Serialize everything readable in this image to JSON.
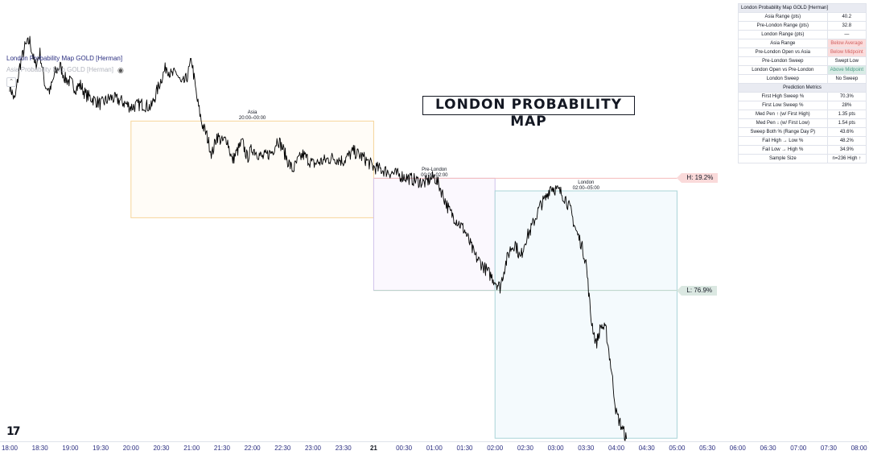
{
  "legend": {
    "indicator_title": "London Probability Map GOLD [Herman]",
    "indicator_sub": "Asia Probability Map GOLD [Herman]",
    "eye_icon": "eye-icon",
    "collapse_icon": "chevron-up-icon"
  },
  "banner_title": "LONDON PROBABILITY MAP",
  "sessions": [
    {
      "name": "Asia",
      "time": "20:00–00:00",
      "start": "20:00",
      "end": "00:00",
      "top": 100.6,
      "bottom": 70.0,
      "fill": "#fffcf7",
      "stroke": "#f6d59a"
    },
    {
      "name": "Pre-London",
      "time": "00:00–02:00",
      "start": "00:00",
      "end": "02:00",
      "top": 82.5,
      "bottom": 47.0,
      "fill": "#fbf8fe",
      "stroke": "#cfc2ea"
    },
    {
      "name": "London",
      "time": "02:00–05:00",
      "start": "02:00",
      "end": "05:00",
      "top": 78.5,
      "bottom": 0.2,
      "fill": "#f4fafd",
      "stroke": "#aad4d8"
    }
  ],
  "levels": [
    {
      "label": "H: 19.2%",
      "value": 82.5,
      "from": "00:00",
      "to": "05:00",
      "color": "#f5bcbc",
      "kind": "h"
    },
    {
      "label": "L: 76.9%",
      "value": 47.0,
      "from": "00:00",
      "to": "05:00",
      "color": "#b9d3c7",
      "kind": "l"
    }
  ],
  "info_table": {
    "title": "London Probability Map GOLD [Herman]",
    "rows": [
      {
        "label": "Asia Range (pts)",
        "value": "40.2",
        "style": ""
      },
      {
        "label": "Pre-London Range (pts)",
        "value": "32.8",
        "style": ""
      },
      {
        "label": "London Range (pts)",
        "value": "—",
        "style": ""
      },
      {
        "label": "Asia Range",
        "value": "Below Average",
        "style": "red"
      },
      {
        "label": "Pre-London Open vs Asia",
        "value": "Below Midpoint",
        "style": "red"
      },
      {
        "label": "Pre-London Sweep",
        "value": "Swept Low",
        "style": ""
      },
      {
        "label": "London Open vs Pre-London",
        "value": "Above Midpoint",
        "style": "green"
      },
      {
        "label": "London Sweep",
        "value": "No Sweep",
        "style": ""
      }
    ],
    "section_title": "Prediction Metrics",
    "metrics": [
      {
        "label": "First High Sweep %",
        "value": "70.3%"
      },
      {
        "label": "First Low Sweep %",
        "value": "28%"
      },
      {
        "label": "Med Pen ↑ (w/ First High)",
        "value": "1.35 pts"
      },
      {
        "label": "Med Pen ↓ (w/ First Low)",
        "value": "1.54 pts"
      },
      {
        "label": "Sweep Both % (Range Day P)",
        "value": "43.6%"
      },
      {
        "label": "Fail High → Low %",
        "value": "48.2%"
      },
      {
        "label": "Fail Low → High %",
        "value": "34.9%"
      },
      {
        "label": "Sample Size",
        "value": "n=236 High ↑"
      }
    ]
  },
  "chart_data": {
    "type": "line",
    "x_ticks": [
      "18:00",
      "18:30",
      "19:00",
      "19:30",
      "20:00",
      "20:30",
      "21:00",
      "21:30",
      "22:00",
      "22:30",
      "23:00",
      "23:30",
      "21",
      "00:30",
      "01:00",
      "01:30",
      "02:00",
      "02:30",
      "03:00",
      "03:30",
      "04:00",
      "04:30",
      "05:00",
      "05:30",
      "06:00",
      "06:30",
      "07:00",
      "07:30",
      "08:00"
    ],
    "x_range": [
      "18:00",
      "08:00"
    ],
    "y_range": [
      0,
      130
    ],
    "series": [
      {
        "values_time": [
          "18:00",
          "18:05",
          "18:10",
          "18:15",
          "18:20",
          "18:25",
          "18:30",
          "18:35",
          "18:40",
          "18:45",
          "18:50",
          "18:55",
          "19:00",
          "19:05",
          "19:10",
          "19:15",
          "19:20",
          "19:25",
          "19:30",
          "19:40",
          "19:50",
          "20:00",
          "20:10",
          "20:20",
          "20:30",
          "20:35",
          "20:40",
          "20:45",
          "20:50",
          "20:55",
          "21:00",
          "21:05",
          "21:10",
          "21:15",
          "21:20",
          "21:25",
          "21:30",
          "21:35",
          "21:40",
          "21:45",
          "21:50",
          "21:55",
          "22:00",
          "22:10",
          "22:20",
          "22:25",
          "22:30",
          "22:35",
          "22:40",
          "22:45",
          "22:50",
          "23:00",
          "23:10",
          "23:20",
          "23:30",
          "23:40",
          "23:50",
          "00:00",
          "00:10",
          "00:20",
          "00:30",
          "00:40",
          "00:50",
          "01:00",
          "01:05",
          "01:10",
          "01:15",
          "01:20",
          "01:25",
          "01:30",
          "01:35",
          "01:40",
          "01:45",
          "01:50",
          "01:55",
          "02:00",
          "02:05",
          "02:10",
          "02:15",
          "02:20",
          "02:25",
          "02:30",
          "02:35",
          "02:40",
          "02:45",
          "02:50",
          "02:55",
          "03:00",
          "03:05",
          "03:10",
          "03:15",
          "03:20",
          "03:25",
          "03:30",
          "03:35",
          "03:40",
          "03:45",
          "03:50",
          "03:55",
          "04:00",
          "04:05",
          "04:10"
        ],
        "values": [
          112,
          107,
          118,
          124,
          126,
          118,
          122,
          112,
          110,
          116,
          118,
          114,
          113,
          111,
          112,
          109,
          108,
          107,
          106,
          108,
          107,
          105,
          106,
          105,
          114,
          118,
          115,
          116,
          112,
          114,
          120,
          108,
          100,
          96,
          90,
          96,
          94,
          95,
          88,
          91,
          94,
          89,
          92,
          89,
          91,
          95,
          92,
          88,
          85,
          88,
          90,
          87,
          88,
          89,
          88,
          91,
          89,
          86,
          85,
          84,
          83,
          82,
          81,
          83,
          80,
          76,
          72,
          70,
          68,
          66,
          62,
          58,
          56,
          54,
          52,
          50,
          48,
          55,
          60,
          62,
          57,
          63,
          66,
          70,
          74,
          76,
          80,
          79,
          78,
          76,
          72,
          66,
          62,
          56,
          38,
          30,
          36,
          34,
          22,
          8,
          4,
          0
        ]
      }
    ]
  },
  "tv_logo": "17"
}
